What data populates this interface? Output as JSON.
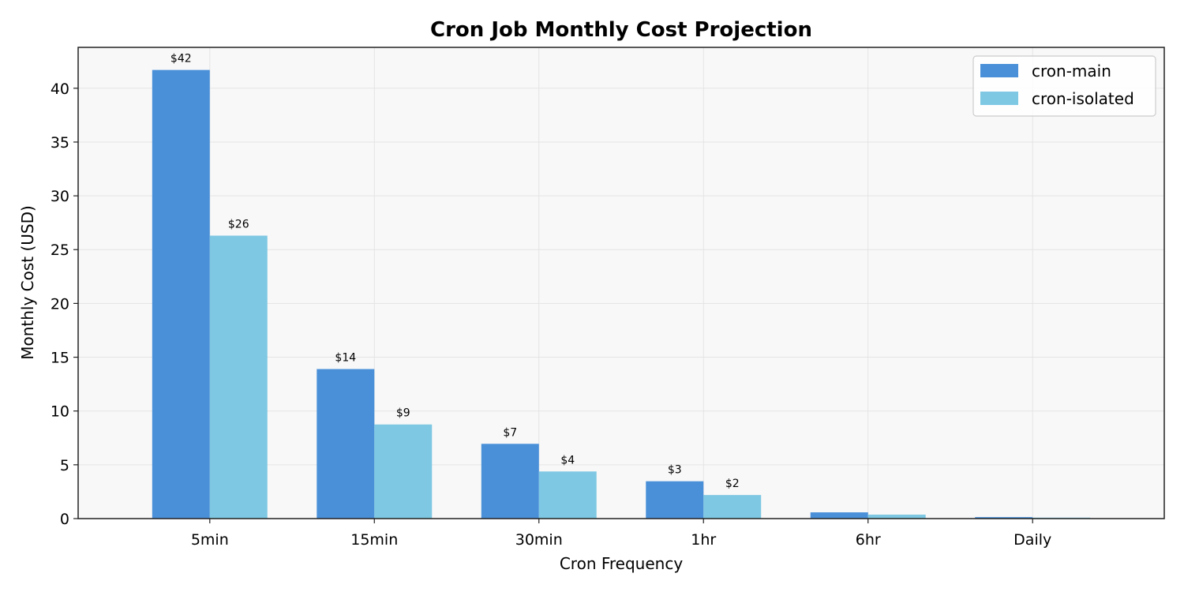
{
  "chart_data": {
    "type": "bar",
    "title": "Cron Job Monthly Cost Projection",
    "xlabel": "Cron Frequency",
    "ylabel": "Monthly Cost (USD)",
    "categories": [
      "5min",
      "15min",
      "30min",
      "1hr",
      "6hr",
      "Daily"
    ],
    "ylim": [
      0,
      43.8
    ],
    "yticks": [
      0,
      5,
      10,
      15,
      20,
      25,
      30,
      35,
      40
    ],
    "grid": true,
    "legend_position": "top-right",
    "series": [
      {
        "name": "cron-main",
        "color": "#4a90d9",
        "values": [
          41.7,
          13.9,
          6.95,
          3.47,
          0.58,
          0.14
        ],
        "labels": [
          "$42",
          "$14",
          "$7",
          "$3",
          "",
          ""
        ]
      },
      {
        "name": "cron-isolated",
        "color": "#7ec8e3",
        "values": [
          26.3,
          8.75,
          4.38,
          2.19,
          0.37,
          0.09
        ],
        "labels": [
          "$26",
          "$9",
          "$4",
          "$2",
          "",
          ""
        ]
      }
    ]
  }
}
